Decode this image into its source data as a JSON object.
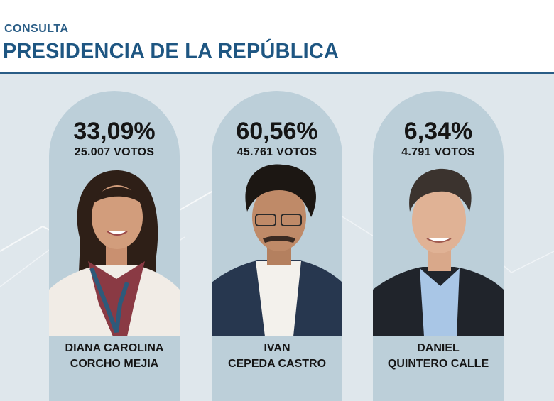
{
  "header": {
    "kicker": "CONSULTA",
    "title": "PRESIDENCIA DE LA REPÚBLICA"
  },
  "candidates": [
    {
      "percent": "33,09%",
      "votes": "25.007 VOTOS",
      "name_line1": "DIANA CAROLINA",
      "name_line2": "CORCHO MEJIA"
    },
    {
      "percent": "60,56%",
      "votes": "45.761 VOTOS",
      "name_line1": "IVAN",
      "name_line2": "CEPEDA CASTRO"
    },
    {
      "percent": "6,34%",
      "votes": "4.791 VOTOS",
      "name_line1": "DANIEL",
      "name_line2": "QUINTERO CALLE"
    }
  ],
  "colors": {
    "accent": "#1e5682",
    "card": "#bccfd9",
    "background": "#dfe7ec"
  }
}
